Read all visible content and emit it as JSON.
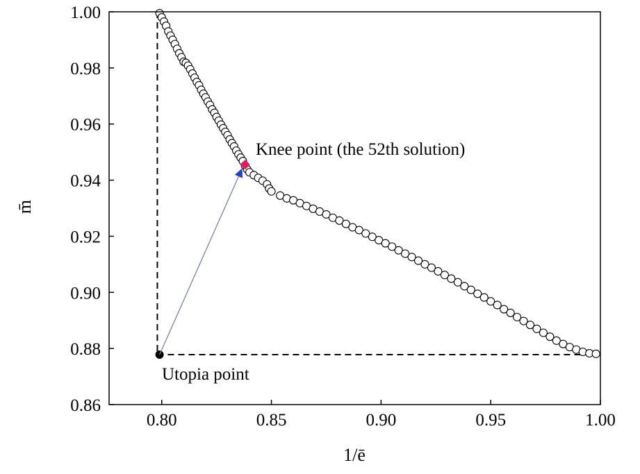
{
  "chart_data": {
    "type": "scatter",
    "title": "",
    "xlabel": "1/ē",
    "ylabel": "m̄",
    "xlim": [
      0.776,
      1.0
    ],
    "ylim": [
      0.86,
      1.0
    ],
    "xticks": [
      "0.80",
      "0.85",
      "0.90",
      "0.95",
      "1.00"
    ],
    "yticks": [
      "0.86",
      "0.88",
      "0.90",
      "0.92",
      "0.94",
      "0.96",
      "0.98",
      "1.00"
    ],
    "grid": false,
    "legend": "none",
    "marker_style": "open-circle",
    "series": [
      {
        "points": [
          [
            0.799,
            0.9995
          ],
          [
            0.8,
            0.998
          ],
          [
            0.801,
            0.9965
          ],
          [
            0.802,
            0.995
          ],
          [
            0.803,
            0.993
          ],
          [
            0.804,
            0.9915
          ],
          [
            0.805,
            0.99
          ],
          [
            0.806,
            0.9885
          ],
          [
            0.807,
            0.9868
          ],
          [
            0.808,
            0.9852
          ],
          [
            0.809,
            0.9838
          ],
          [
            0.81,
            0.9822
          ],
          [
            0.811,
            0.9818
          ],
          [
            0.812,
            0.9808
          ],
          [
            0.813,
            0.9795
          ],
          [
            0.814,
            0.978
          ],
          [
            0.815,
            0.9765
          ],
          [
            0.816,
            0.975
          ],
          [
            0.817,
            0.9738
          ],
          [
            0.818,
            0.9722
          ],
          [
            0.819,
            0.9708
          ],
          [
            0.82,
            0.9695
          ],
          [
            0.821,
            0.968
          ],
          [
            0.822,
            0.9668
          ],
          [
            0.823,
            0.9652
          ],
          [
            0.824,
            0.964
          ],
          [
            0.825,
            0.9625
          ],
          [
            0.826,
            0.9612
          ],
          [
            0.827,
            0.9598
          ],
          [
            0.828,
            0.9585
          ],
          [
            0.829,
            0.9572
          ],
          [
            0.83,
            0.956
          ],
          [
            0.831,
            0.9545
          ],
          [
            0.832,
            0.9532
          ],
          [
            0.833,
            0.952
          ],
          [
            0.834,
            0.9505
          ],
          [
            0.835,
            0.9492
          ],
          [
            0.836,
            0.948
          ],
          [
            0.837,
            0.9468
          ],
          [
            0.838,
            0.9452
          ],
          [
            0.839,
            0.9438
          ],
          [
            0.84,
            0.9428
          ],
          [
            0.842,
            0.9418
          ],
          [
            0.844,
            0.9408
          ],
          [
            0.846,
            0.9398
          ],
          [
            0.848,
            0.9385
          ],
          [
            0.849,
            0.937
          ],
          [
            0.85,
            0.936
          ],
          [
            0.854,
            0.9345
          ],
          [
            0.857,
            0.9335
          ],
          [
            0.86,
            0.9328
          ],
          [
            0.863,
            0.9318
          ],
          [
            0.866,
            0.9308
          ],
          [
            0.869,
            0.9298
          ],
          [
            0.872,
            0.9288
          ],
          [
            0.875,
            0.9278
          ],
          [
            0.878,
            0.9266
          ],
          [
            0.881,
            0.9256
          ],
          [
            0.884,
            0.9244
          ],
          [
            0.887,
            0.9232
          ],
          [
            0.89,
            0.9222
          ],
          [
            0.893,
            0.921
          ],
          [
            0.896,
            0.9198
          ],
          [
            0.899,
            0.9186
          ],
          [
            0.902,
            0.9175
          ],
          [
            0.905,
            0.9163
          ],
          [
            0.908,
            0.915
          ],
          [
            0.911,
            0.9138
          ],
          [
            0.914,
            0.9126
          ],
          [
            0.917,
            0.9113
          ],
          [
            0.92,
            0.91
          ],
          [
            0.923,
            0.9088
          ],
          [
            0.926,
            0.9075
          ],
          [
            0.929,
            0.9062
          ],
          [
            0.932,
            0.9049
          ],
          [
            0.935,
            0.9036
          ],
          [
            0.938,
            0.9022
          ],
          [
            0.941,
            0.9009
          ],
          [
            0.944,
            0.8995
          ],
          [
            0.947,
            0.8982
          ],
          [
            0.95,
            0.8968
          ],
          [
            0.953,
            0.8955
          ],
          [
            0.956,
            0.894
          ],
          [
            0.959,
            0.8927
          ],
          [
            0.962,
            0.8912
          ],
          [
            0.965,
            0.8898
          ],
          [
            0.968,
            0.8884
          ],
          [
            0.971,
            0.887
          ],
          [
            0.974,
            0.8856
          ],
          [
            0.977,
            0.8842
          ],
          [
            0.98,
            0.8828
          ],
          [
            0.983,
            0.8816
          ],
          [
            0.986,
            0.8805
          ],
          [
            0.989,
            0.8796
          ],
          [
            0.992,
            0.8788
          ],
          [
            0.995,
            0.8783
          ],
          [
            0.998,
            0.8781
          ]
        ]
      }
    ],
    "utopia_point": {
      "x": 0.799,
      "y": 0.8778,
      "label": "Utopia point",
      "color": "#000000"
    },
    "knee_point": {
      "x": 0.838,
      "y": 0.9455,
      "label": "Knee point (the 52th solution)",
      "color": "#e8185a"
    },
    "arrow_color": "#7a7fae",
    "arrowhead_color": "#1f3fd0",
    "boundary_lines": {
      "x": 0.798,
      "y": 0.8778,
      "style": "dashed"
    }
  }
}
